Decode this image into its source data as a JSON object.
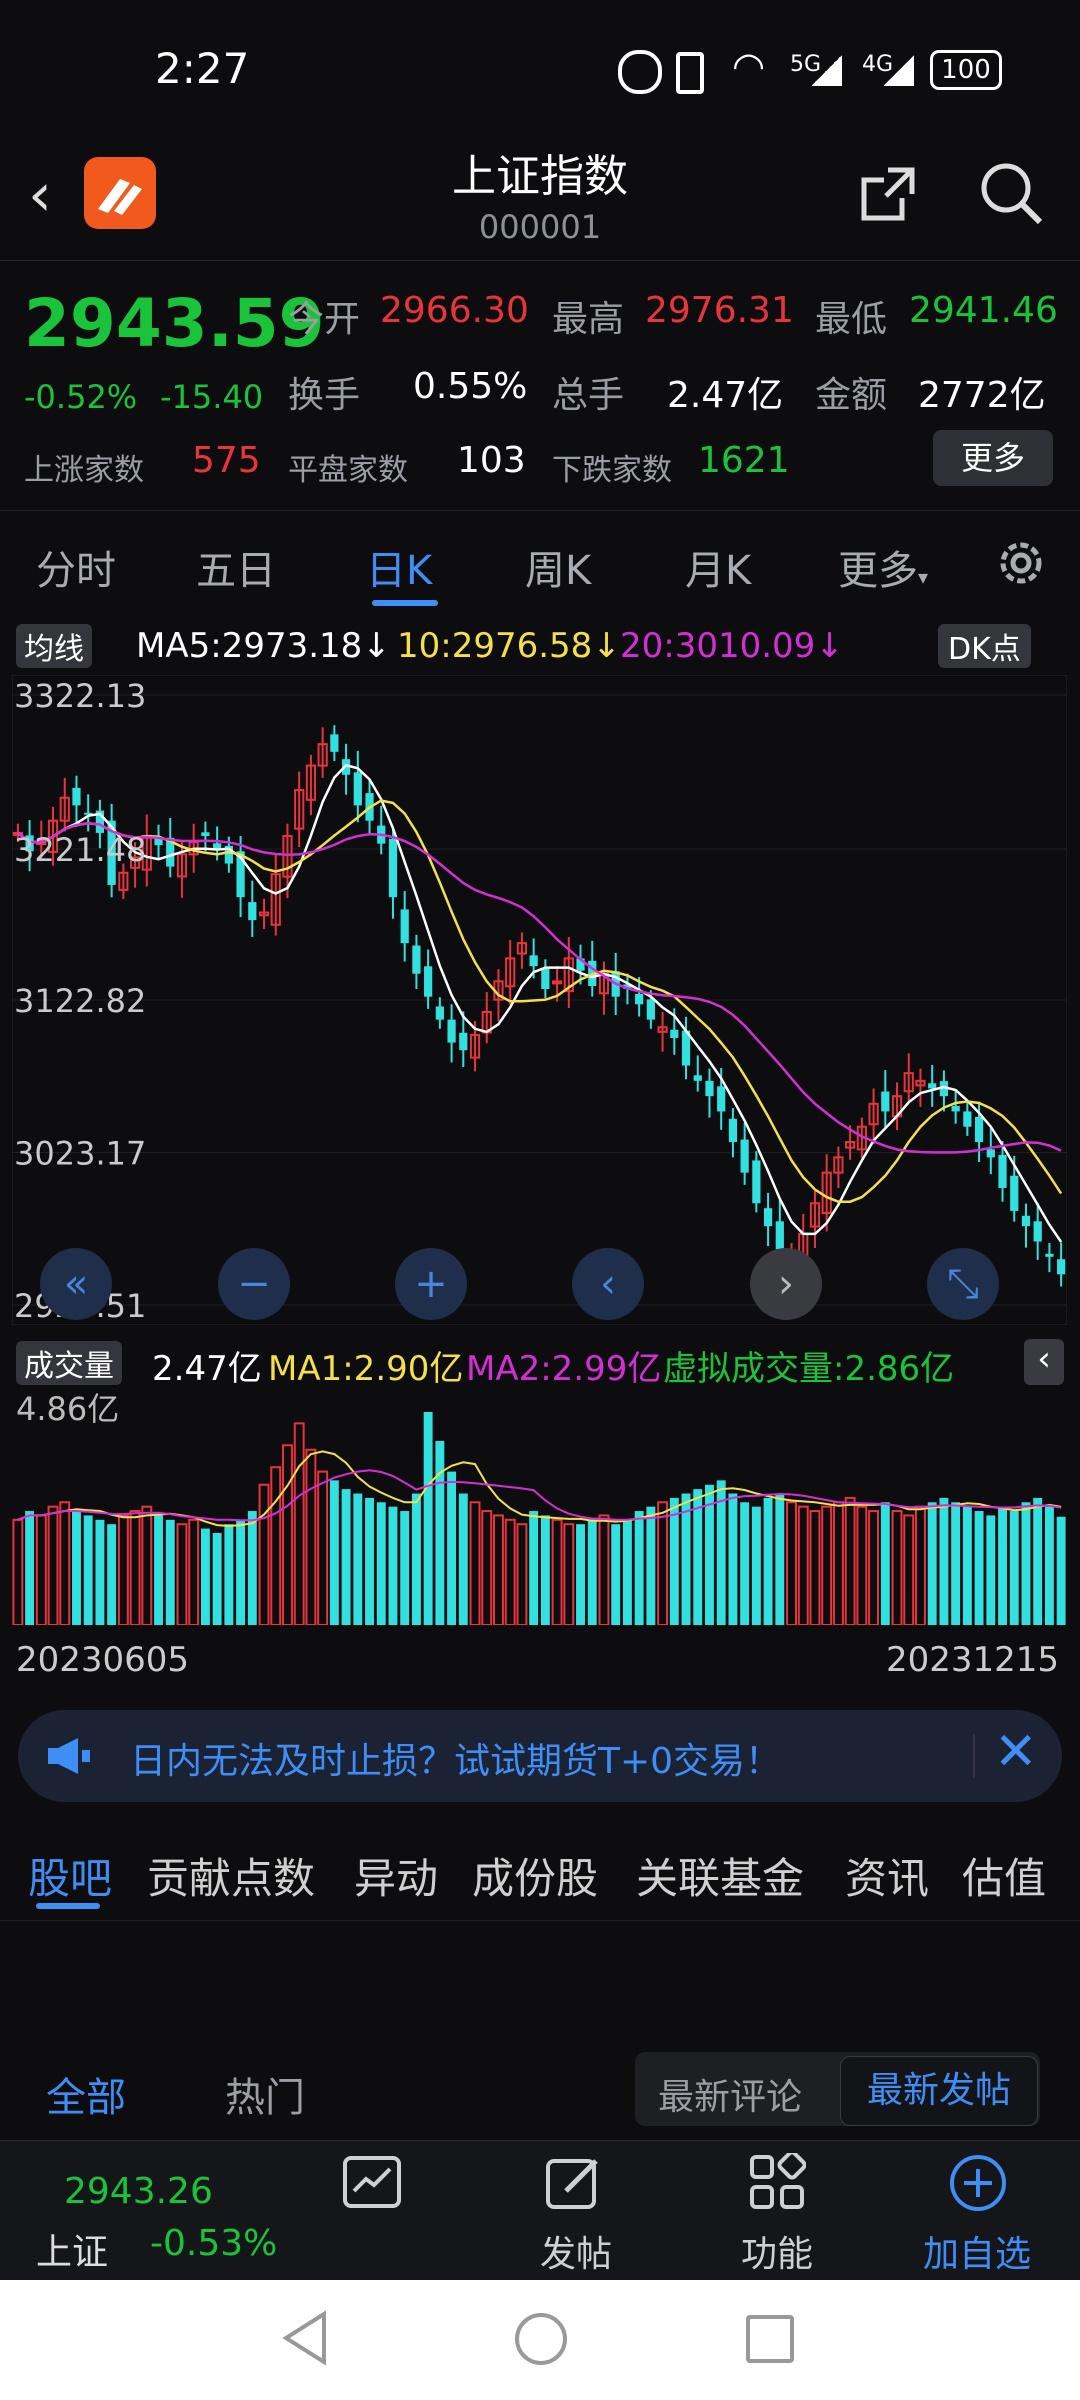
{
  "status": {
    "time": "2:27",
    "battery": "100",
    "net1": "5G",
    "net2": "4G"
  },
  "header": {
    "title": "上证指数",
    "code": "000001"
  },
  "quote": {
    "price": "2943.59",
    "change_pct": "-0.52%",
    "change": "-15.40",
    "open_label": "今开",
    "open": "2966.30",
    "high_label": "最高",
    "high": "2976.31",
    "low_label": "最低",
    "low": "2941.46",
    "turnover_label": "换手",
    "turnover": "0.55%",
    "volume_label": "总手",
    "volume": "2.47亿",
    "amount_label": "金额",
    "amount": "2772亿",
    "up_label": "上涨家数",
    "up": "575",
    "flat_label": "平盘家数",
    "flat": "103",
    "down_label": "下跌家数",
    "down": "1621",
    "more": "更多"
  },
  "tabs": [
    "分时",
    "五日",
    "日K",
    "周K",
    "月K",
    "更多"
  ],
  "ma": {
    "btn": "均线",
    "ma5": "MA5:2973.18",
    "ma10": "10:2976.58",
    "ma20": "20:3010.09",
    "dk": "DK点"
  },
  "chart_data": {
    "type": "candlestick",
    "y_labels": [
      "3322.13",
      "3221.48",
      "3122.82",
      "3023.17",
      "2923.51"
    ],
    "ylim": [
      2923.51,
      3322.13
    ],
    "x_start": "20230605",
    "x_end": "20231215",
    "closes": [
      3232,
      3220,
      3226,
      3240,
      3255,
      3250,
      3245,
      3232,
      3198,
      3206,
      3216,
      3230,
      3224,
      3210,
      3218,
      3226,
      3230,
      3222,
      3212,
      3190,
      3175,
      3180,
      3205,
      3230,
      3260,
      3276,
      3290,
      3285,
      3270,
      3250,
      3240,
      3225,
      3190,
      3160,
      3140,
      3125,
      3110,
      3095,
      3090,
      3100,
      3115,
      3135,
      3150,
      3160,
      3145,
      3130,
      3135,
      3150,
      3142,
      3132,
      3140,
      3125,
      3130,
      3120,
      3110,
      3105,
      3098,
      3080,
      3070,
      3060,
      3050,
      3030,
      3010,
      2990,
      2975,
      2960,
      2955,
      2970,
      2990,
      3010,
      3020,
      3030,
      3040,
      3055,
      3050,
      3060,
      3075,
      3070,
      3065,
      3060,
      3050,
      3040,
      3030,
      3020,
      3000,
      2985,
      2975,
      2965,
      2955,
      2943.59
    ],
    "volume_label": "4.86亿",
    "volumes": [
      2.4,
      2.6,
      2.5,
      2.7,
      2.8,
      2.6,
      2.5,
      2.4,
      2.3,
      2.5,
      2.6,
      2.7,
      2.5,
      2.4,
      2.3,
      2.4,
      2.2,
      2.1,
      2.3,
      2.4,
      2.6,
      3.2,
      3.6,
      4.1,
      4.6,
      4.0,
      3.5,
      3.3,
      3.1,
      3.0,
      2.9,
      2.8,
      2.7,
      2.6,
      3.0,
      4.86,
      4.2,
      3.5,
      3.0,
      2.8,
      2.6,
      2.5,
      2.4,
      2.3,
      2.6,
      2.5,
      2.4,
      2.3,
      2.3,
      2.4,
      2.5,
      2.3,
      2.4,
      2.6,
      2.7,
      2.8,
      2.9,
      3.0,
      3.1,
      3.2,
      3.3,
      3.0,
      2.8,
      2.7,
      2.9,
      3.0,
      2.8,
      2.7,
      2.6,
      2.7,
      2.8,
      2.9,
      2.7,
      2.6,
      2.8,
      2.6,
      2.5,
      2.7,
      2.8,
      2.9,
      2.8,
      2.7,
      2.6,
      2.5,
      2.7,
      2.6,
      2.8,
      2.9,
      2.7,
      2.47
    ]
  },
  "volume": {
    "btn": "成交量",
    "value": "2.47亿",
    "ma1": "MA1:2.90亿",
    "ma2": "MA2:2.99亿",
    "virtual": "虚拟成交量:2.86亿"
  },
  "banner": {
    "text": "日内无法及时止损？试试期货T+0交易！"
  },
  "sections": [
    "股吧",
    "贡献点数",
    "异动",
    "成份股",
    "关联基金",
    "资讯",
    "估值"
  ],
  "feed": {
    "tab_all": "全部",
    "tab_hot": "热门",
    "sort_comment": "最新评论",
    "sort_post": "最新发帖"
  },
  "bottom": {
    "price": "2943.26",
    "name": "上证",
    "pct": "-0.53%",
    "post": "发帖",
    "func": "功能",
    "add": "加自选"
  }
}
